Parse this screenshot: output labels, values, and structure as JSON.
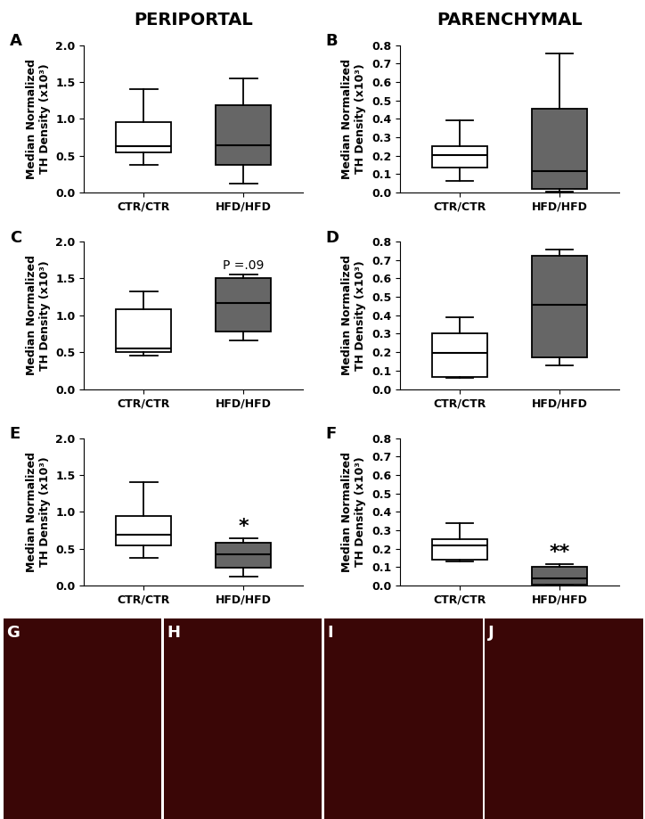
{
  "headers": [
    "PERIPORTAL",
    "PARENCHYMAL"
  ],
  "chart_data": [
    {
      "type": "box",
      "panel": "A",
      "ylabel": "Median Normalized\nTH Density (x10³)",
      "categories": [
        "CTR/CTR",
        "HFD/HFD"
      ],
      "colors": [
        "#ffffff",
        "#666666"
      ],
      "low": [
        0.37,
        0.12
      ],
      "q1": [
        0.54,
        0.37
      ],
      "median": [
        0.63,
        0.64
      ],
      "q3": [
        0.95,
        1.18
      ],
      "high": [
        1.4,
        1.55
      ],
      "ylim": [
        0,
        2.0
      ],
      "yticks": [
        {
          "value": 0,
          "label": "0.0"
        },
        0.5,
        {
          "value": 1,
          "label": "1.0"
        },
        1.5,
        {
          "value": 2,
          "label": "2.0"
        }
      ],
      "annotations": []
    },
    {
      "type": "box",
      "panel": "B",
      "ylabel": "Median Normalized\nTH Density (x10³)",
      "categories": [
        "CTR/CTR",
        "HFD/HFD"
      ],
      "colors": [
        "#ffffff",
        "#666666"
      ],
      "low": [
        0.065,
        0.005
      ],
      "q1": [
        0.135,
        0.02
      ],
      "median": [
        0.205,
        0.115
      ],
      "q3": [
        0.25,
        0.455
      ],
      "high": [
        0.39,
        0.755
      ],
      "ylim": [
        0,
        0.8
      ],
      "yticks": [
        {
          "value": 0,
          "label": "0.0"
        },
        0.1,
        0.2,
        0.3,
        0.4,
        0.5,
        0.6,
        0.7,
        0.8
      ],
      "annotations": []
    },
    {
      "type": "box",
      "panel": "C",
      "ylabel": "Median Normalized\nTH Density (x10³)",
      "categories": [
        "CTR/CTR",
        "HFD/HFD"
      ],
      "colors": [
        "#ffffff",
        "#666666"
      ],
      "low": [
        0.45,
        0.66
      ],
      "q1": [
        0.5,
        0.78
      ],
      "median": [
        0.55,
        1.17
      ],
      "q3": [
        1.08,
        1.5
      ],
      "high": [
        1.33,
        1.55
      ],
      "ylim": [
        0,
        2.0
      ],
      "yticks": [
        {
          "value": 0,
          "label": "0.0"
        },
        0.5,
        {
          "value": 1,
          "label": "1.0"
        },
        1.5,
        {
          "value": 2,
          "label": "2.0"
        }
      ],
      "annotations": [
        {
          "text": "P =.09",
          "category": "HFD/HFD"
        }
      ]
    },
    {
      "type": "box",
      "panel": "D",
      "ylabel": "Median Normalized\nTH Density (x10³)",
      "categories": [
        "CTR/CTR",
        "HFD/HFD"
      ],
      "colors": [
        "#ffffff",
        "#666666"
      ],
      "low": [
        0.06,
        0.13
      ],
      "q1": [
        0.065,
        0.17
      ],
      "median": [
        0.195,
        0.455
      ],
      "q3": [
        0.3,
        0.725
      ],
      "high": [
        0.39,
        0.755
      ],
      "ylim": [
        0,
        0.8
      ],
      "yticks": [
        {
          "value": 0,
          "label": "0.0"
        },
        0.1,
        0.2,
        0.3,
        0.4,
        0.5,
        0.6,
        0.7,
        0.8
      ],
      "annotations": []
    },
    {
      "type": "box",
      "panel": "E",
      "ylabel": "Median Normalized\nTH Density (x10³)",
      "categories": [
        "CTR/CTR",
        "HFD/HFD"
      ],
      "colors": [
        "#ffffff",
        "#666666"
      ],
      "low": [
        0.37,
        0.12
      ],
      "q1": [
        0.55,
        0.24
      ],
      "median": [
        0.69,
        0.42
      ],
      "q3": [
        0.95,
        0.58
      ],
      "high": [
        1.4,
        0.64
      ],
      "ylim": [
        0,
        2.0
      ],
      "yticks": [
        {
          "value": 0,
          "label": "0.0"
        },
        0.5,
        {
          "value": 1,
          "label": "1.0"
        },
        1.5,
        {
          "value": 2,
          "label": "2.0"
        }
      ],
      "annotations": [
        {
          "text": "*",
          "category": "HFD/HFD"
        }
      ]
    },
    {
      "type": "box",
      "panel": "F",
      "ylabel": "Median Normalized\nTH Density (x10³)",
      "categories": [
        "CTR/CTR",
        "HFD/HFD"
      ],
      "colors": [
        "#ffffff",
        "#666666"
      ],
      "low": [
        0.13,
        0.0
      ],
      "q1": [
        0.14,
        0.005
      ],
      "median": [
        0.22,
        0.04
      ],
      "q3": [
        0.25,
        0.1
      ],
      "high": [
        0.34,
        0.115
      ],
      "ylim": [
        0,
        0.8
      ],
      "yticks": [
        {
          "value": 0,
          "label": "0.0"
        },
        0.1,
        0.2,
        0.3,
        0.4,
        0.5,
        0.6,
        0.7,
        0.8
      ],
      "annotations": [
        {
          "text": "**",
          "category": "HFD/HFD"
        }
      ]
    }
  ],
  "images": {
    "labels": [
      "G",
      "H",
      "I",
      "J"
    ]
  }
}
